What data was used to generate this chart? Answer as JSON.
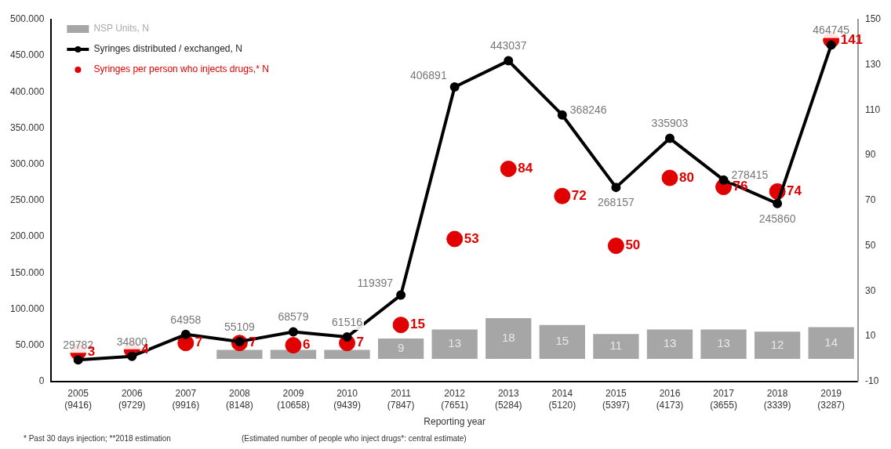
{
  "chart_data": {
    "type": "bar",
    "categories": [
      "2005 (9416)",
      "2006 (9729)",
      "2007 (9916)",
      "2008 (8148)",
      "2009 (10658)",
      "2010 (9439)",
      "2011 (7847)",
      "2012 (7651)",
      "2013 (5284)",
      "2014 (5120)",
      "2015 (5397)",
      "2016 (4173)",
      "2017 (3655)",
      "2018 (3339)",
      "2019 (3287)"
    ],
    "xlabel": "Reporting year",
    "series": [
      {
        "name": "NSP Units, N",
        "axis": "y2",
        "color": "#a6a6a6",
        "values": [
          null,
          null,
          null,
          4,
          4,
          4,
          9,
          13,
          18,
          15,
          11,
          13,
          13,
          12,
          14
        ],
        "value_labels": [
          null,
          null,
          null,
          null,
          null,
          null,
          "9",
          "13",
          "18",
          "15",
          "11",
          "13",
          "13",
          "12",
          "14"
        ]
      },
      {
        "name": "Syringes distributed / exchanged, N",
        "type": "line",
        "color": "#000000",
        "marker": "circle",
        "line_style": "solid",
        "values": [
          29782,
          34800,
          64958,
          55109,
          68579,
          61516,
          119397,
          406891,
          443037,
          368246,
          268157,
          335903,
          278415,
          245860,
          464745
        ],
        "value_labels": [
          "29782",
          "34800",
          "64958",
          "55109",
          "68579",
          "61516",
          "119397",
          "406891",
          "443037",
          "368246",
          "268157",
          "335903",
          "278415",
          "245860",
          "464745"
        ]
      },
      {
        "name": "Syringes per person who injects drugs,* N",
        "type": "scatter",
        "axis": "y2",
        "color": "#e00000",
        "marker": "circle",
        "x": [
          "2005 (9416)",
          "2006 (9729)",
          "2007 (9916)",
          "2008 (8148)",
          "2009 (10658)",
          "2010 (9439)",
          "2011 (7847)",
          "2012 (7651)",
          "2013 (5284)",
          "2014 (5120)",
          "2015 (5397)",
          "2016 (4173)",
          "2017 (3655)",
          "2018 (3339)",
          "2019 (3287)"
        ],
        "values": [
          3,
          4,
          7,
          7,
          6,
          7,
          15,
          53,
          84,
          72,
          50,
          80,
          76,
          74,
          141
        ],
        "value_labels": [
          "3",
          "4",
          "7",
          "7",
          "6",
          "7",
          "15",
          "53",
          "84",
          "72",
          "50",
          "80",
          "76",
          "74",
          "141"
        ]
      }
    ],
    "ylim": [
      0,
      500000
    ],
    "yticks": [
      {
        "value": 0,
        "label": "0"
      },
      {
        "value": 50000,
        "label": "50.000"
      },
      {
        "value": 100000,
        "label": "100.000"
      },
      {
        "value": 150000,
        "label": "150.000"
      },
      {
        "value": 200000,
        "label": "200.000"
      },
      {
        "value": 250000,
        "label": "250.000"
      },
      {
        "value": 300000,
        "label": "300.000"
      },
      {
        "value": 350000,
        "label": "350.000"
      },
      {
        "value": 400000,
        "label": "400.000"
      },
      {
        "value": 450000,
        "label": "450.000"
      },
      {
        "value": 500000,
        "label": "500.000"
      }
    ],
    "y2lim": [
      -10,
      150
    ],
    "y2ticks": [
      -10,
      10,
      30,
      50,
      70,
      90,
      110,
      130,
      150
    ],
    "grid": false,
    "legend": "top left",
    "annotations": [
      "* Past 30 days injection; **2018 estimation",
      "(Estimated number of people who inject drugs*: central estimate)"
    ]
  }
}
